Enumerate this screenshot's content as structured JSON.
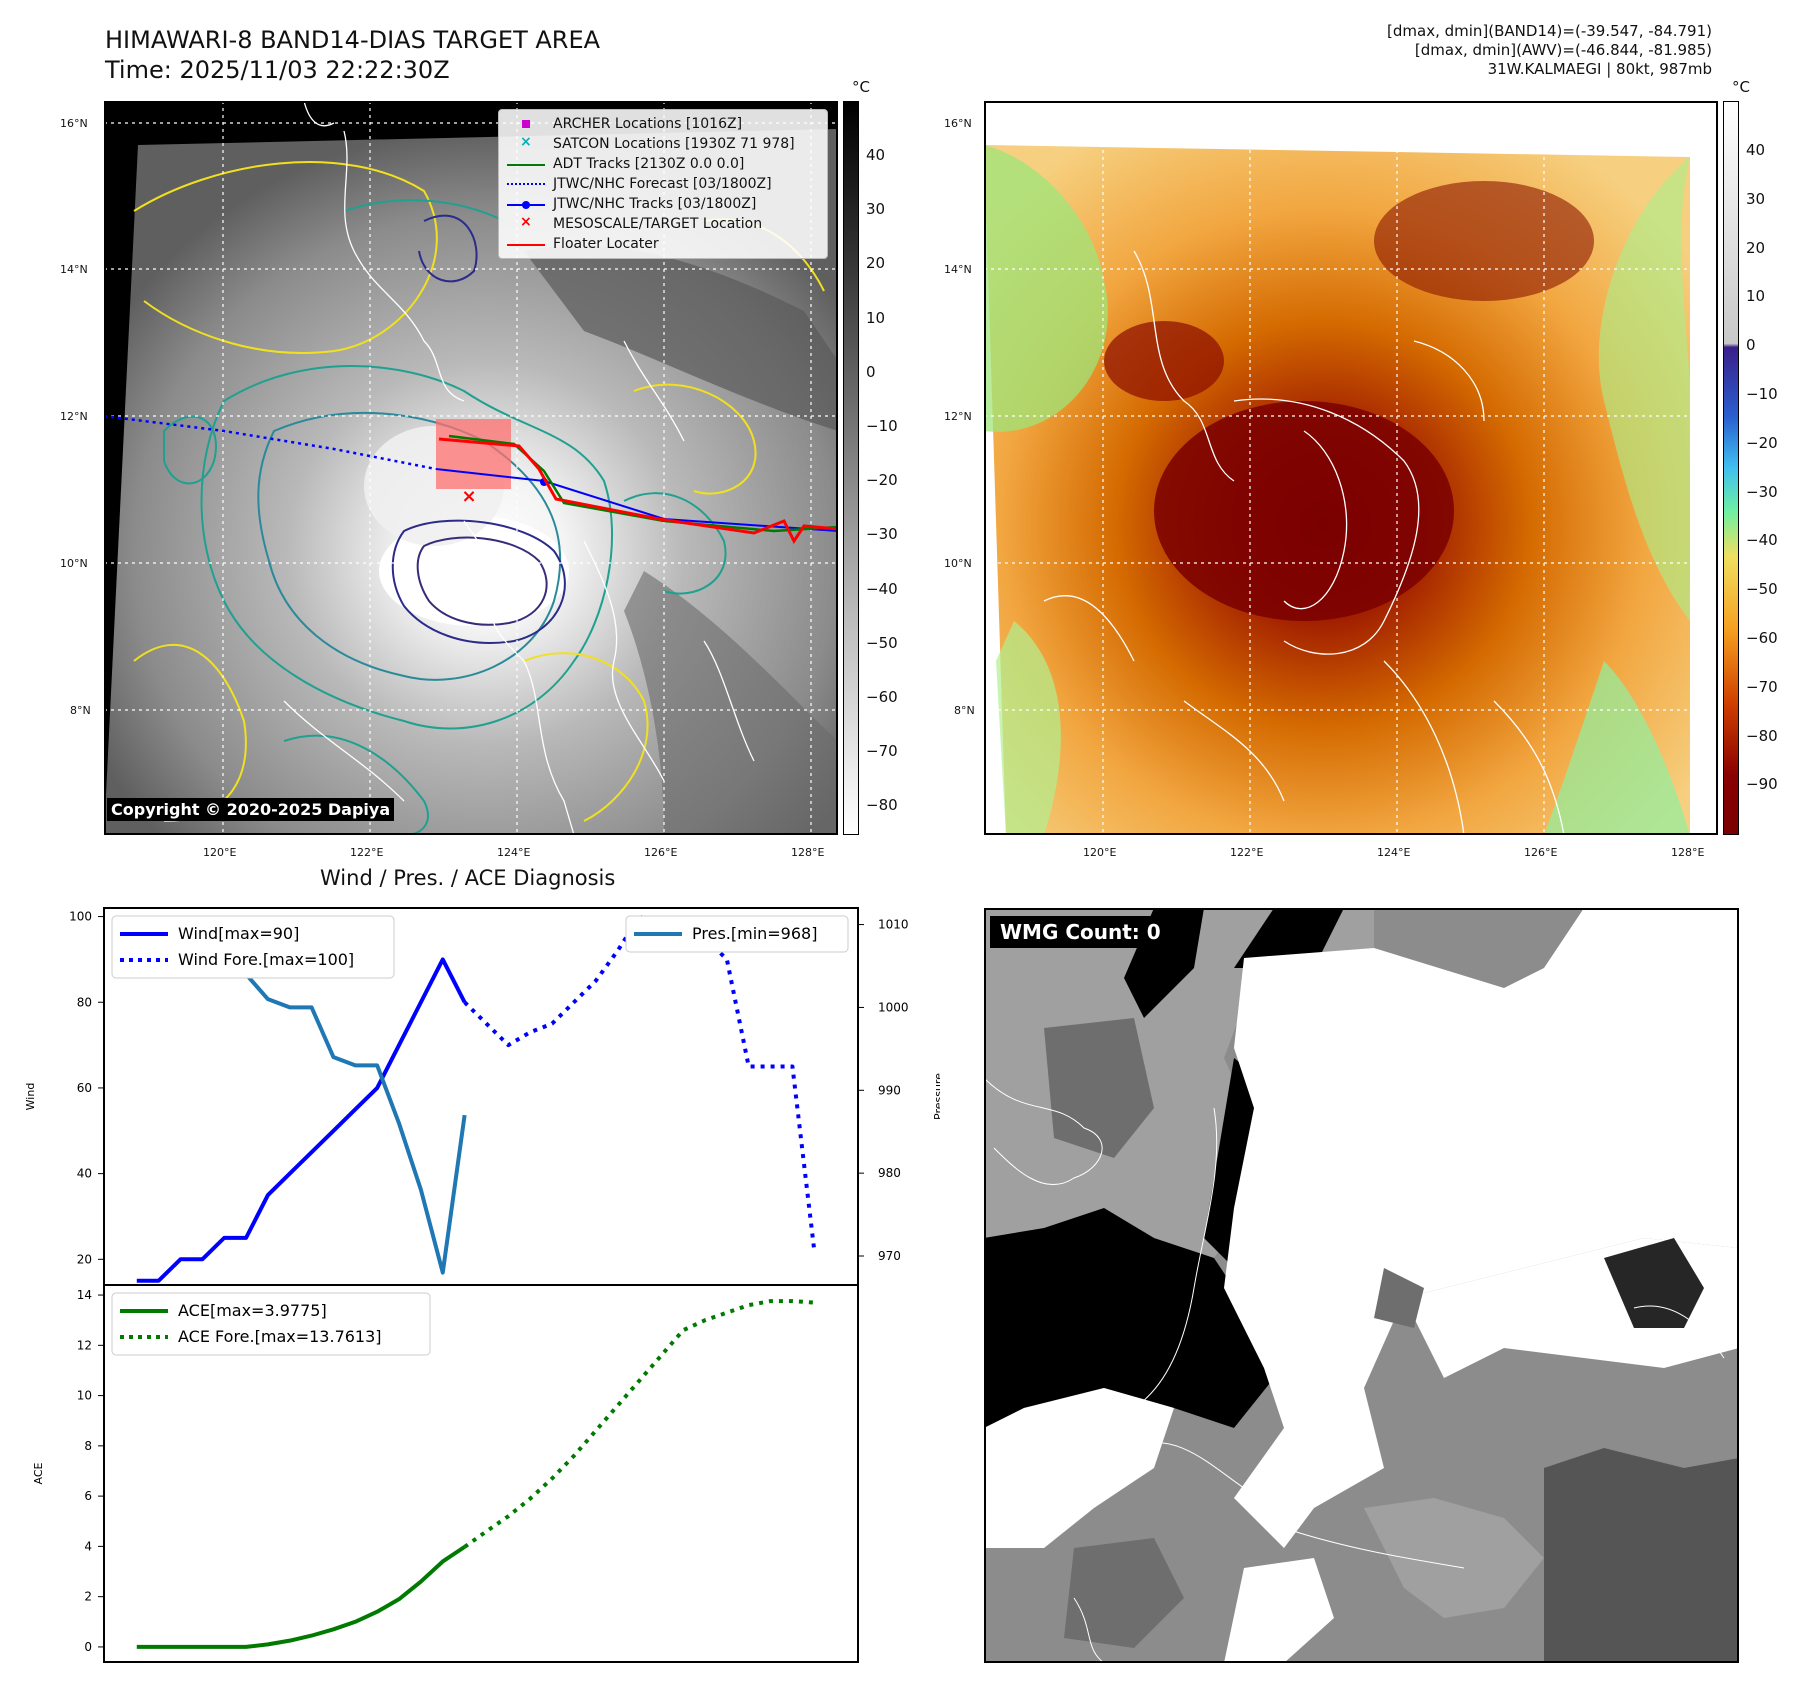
{
  "header": {
    "title_line1": "HIMAWARI-8 BAND14-DIAS TARGET AREA",
    "title_line2": "Time: 2025/11/03 22:22:30Z",
    "info_line1": "[dmax, dmin](BAND14)=(-39.547, -84.791)",
    "info_line2": "[dmax, dmin](AWV)=(-46.844, -81.985)",
    "info_line3": "31W.KALMAEGI | 80kt, 987mb"
  },
  "map_axes": {
    "lat_labels": [
      "16°N",
      "14°N",
      "12°N",
      "10°N",
      "8°N"
    ],
    "lon_labels": [
      "120°E",
      "122°E",
      "124°E",
      "126°E",
      "128°E"
    ]
  },
  "colorbar_gray": {
    "unit": "°C",
    "ticks": [
      "40",
      "30",
      "20",
      "10",
      "0",
      "−10",
      "−20",
      "−30",
      "−40",
      "−50",
      "−60",
      "−70",
      "−80"
    ]
  },
  "colorbar_color": {
    "unit": "°C",
    "ticks": [
      "40",
      "30",
      "20",
      "10",
      "0",
      "−10",
      "−20",
      "−30",
      "−40",
      "−50",
      "−60",
      "−70",
      "−80",
      "−90"
    ]
  },
  "map_legend": [
    {
      "label": "ARCHER Locations [1016Z]",
      "color": "#cc00cc",
      "kind": "square"
    },
    {
      "label": "SATCON Locations [1930Z 71 978]",
      "color": "#00b3b3",
      "kind": "x"
    },
    {
      "label": "ADT Tracks [2130Z 0.0 0.0]",
      "color": "#007a00",
      "kind": "line"
    },
    {
      "label": "JTWC/NHC Forecast [03/1800Z]",
      "color": "#0000ff",
      "kind": "dotted"
    },
    {
      "label": "JTWC/NHC Tracks [03/1800Z]",
      "color": "#0000ff",
      "kind": "line-dot"
    },
    {
      "label": "MESOSCALE/TARGET Location",
      "color": "#ff0000",
      "kind": "x"
    },
    {
      "label": "Floater Locater",
      "color": "#ff0000",
      "kind": "line"
    }
  ],
  "copyright": "Copyright © 2020-2025 Dapiya",
  "wmg_label": "WMG Count: 0",
  "chart_data": [
    {
      "type": "line",
      "title": "Wind / Pres. / ACE Diagnosis",
      "ylabel": "Wind",
      "y2label": "Pressure",
      "ylim": [
        14,
        102
      ],
      "y2lim": [
        966.5,
        1012
      ],
      "yticks": [
        20,
        40,
        60,
        80,
        100
      ],
      "y2ticks": [
        970,
        980,
        990,
        1000,
        1010
      ],
      "xlim": [
        -1.5,
        33
      ],
      "series": [
        {
          "name": "Wind",
          "legend": "Wind[max=90]",
          "axis": "left",
          "color": "#0000ff",
          "style": "solid",
          "x": [
            0,
            1,
            2,
            3,
            4,
            5,
            6,
            7,
            8,
            9,
            10,
            11,
            12,
            13,
            14,
            15
          ],
          "values": [
            15,
            15,
            20,
            20,
            25,
            25,
            35,
            40,
            45,
            50,
            55,
            60,
            70,
            80,
            90,
            80
          ]
        },
        {
          "name": "Wind Fore.",
          "legend": "Wind Fore.[max=100]",
          "axis": "left",
          "color": "#0000ff",
          "style": "dotted",
          "x": [
            15,
            16,
            17,
            18,
            19,
            20,
            21,
            22,
            23,
            24,
            25,
            26,
            27,
            28,
            29,
            30,
            31
          ],
          "values": [
            80,
            75,
            70,
            73,
            75,
            80,
            85,
            92,
            100,
            98,
            97,
            95,
            90,
            65,
            65,
            65,
            22
          ]
        },
        {
          "name": "Pres.",
          "legend": "Pres.[min=968]",
          "axis": "right",
          "color": "#1f77b4",
          "style": "solid",
          "x": [
            0,
            1,
            2,
            3,
            4,
            5,
            6,
            7,
            8,
            9,
            10,
            11,
            12,
            13,
            14,
            15
          ],
          "values": [
            1010,
            1008,
            1008,
            1008,
            1007,
            1004,
            1001,
            1000,
            1000,
            994,
            993,
            993,
            986,
            978,
            968,
            987
          ]
        }
      ]
    },
    {
      "type": "line",
      "ylabel": "ACE",
      "ylim": [
        -0.6,
        14.4
      ],
      "yticks": [
        0,
        2,
        4,
        6,
        8,
        10,
        12,
        14
      ],
      "xlim": [
        -1.5,
        33
      ],
      "series": [
        {
          "name": "ACE",
          "legend": "ACE[max=3.9775]",
          "color": "#007a00",
          "style": "solid",
          "x": [
            0,
            1,
            2,
            3,
            4,
            5,
            6,
            7,
            8,
            9,
            10,
            11,
            12,
            13,
            14,
            15
          ],
          "values": [
            0,
            0,
            0,
            0,
            0,
            0,
            0.1,
            0.25,
            0.45,
            0.7,
            1.0,
            1.4,
            1.9,
            2.6,
            3.4,
            3.98
          ]
        },
        {
          "name": "ACE Fore.",
          "legend": "ACE Fore.[max=13.7613]",
          "color": "#007a00",
          "style": "dotted",
          "x": [
            15,
            16,
            17,
            18,
            19,
            20,
            21,
            22,
            23,
            24,
            25,
            26,
            27,
            28,
            29,
            30,
            31
          ],
          "values": [
            3.98,
            4.6,
            5.2,
            5.9,
            6.7,
            7.6,
            8.6,
            9.6,
            10.6,
            11.6,
            12.6,
            13.0,
            13.3,
            13.6,
            13.76,
            13.76,
            13.7
          ]
        }
      ]
    }
  ]
}
